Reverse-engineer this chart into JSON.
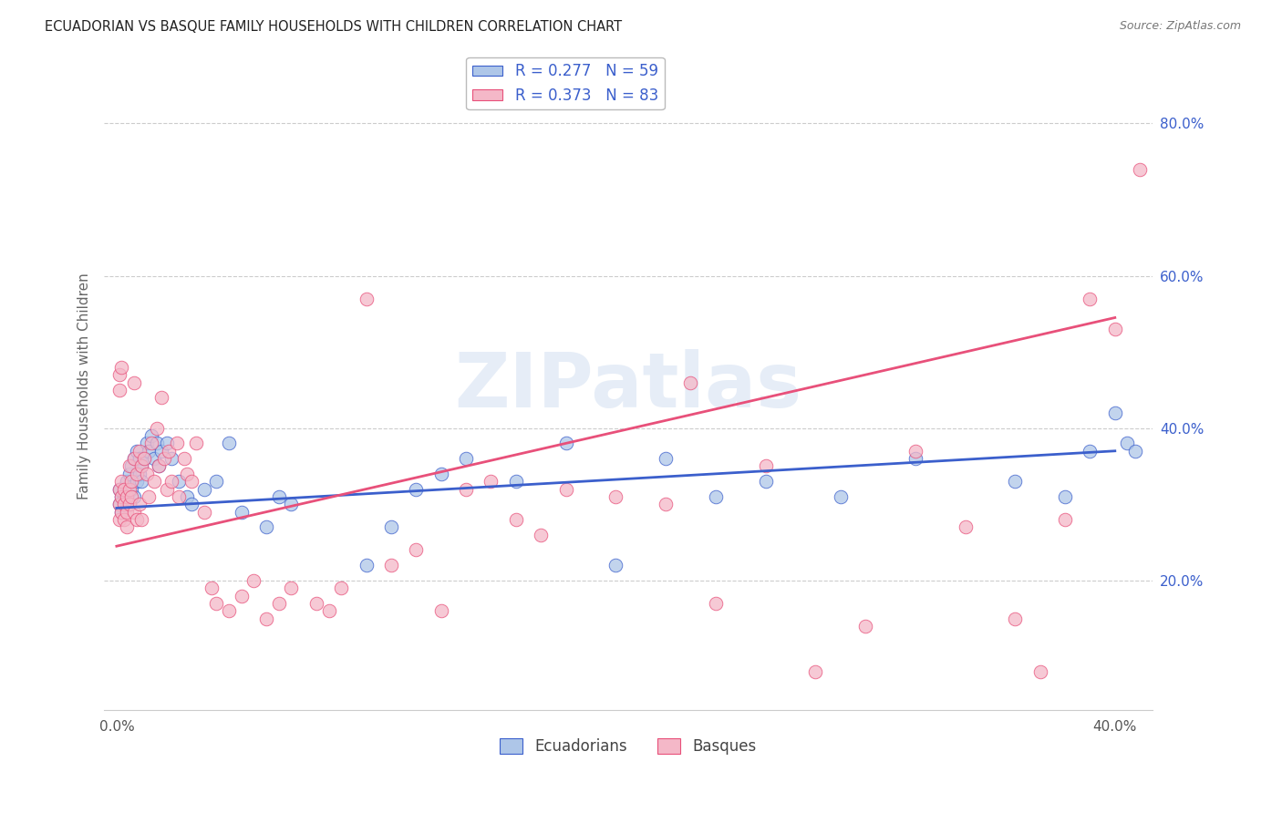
{
  "title": "ECUADORIAN VS BASQUE FAMILY HOUSEHOLDS WITH CHILDREN CORRELATION CHART",
  "source": "Source: ZipAtlas.com",
  "ylabel": "Family Households with Children",
  "watermark": "ZIPatlas",
  "x_ticks": [
    0.0,
    0.1,
    0.2,
    0.3,
    0.4
  ],
  "x_tick_labels": [
    "0.0%",
    "",
    "",
    "",
    "40.0%"
  ],
  "y_ticks_right": [
    0.2,
    0.4,
    0.6,
    0.8
  ],
  "y_tick_labels_right": [
    "20.0%",
    "40.0%",
    "60.0%",
    "80.0%"
  ],
  "x_lim": [
    -0.005,
    0.415
  ],
  "y_lim": [
    0.03,
    0.88
  ],
  "ecuadorians_color": "#aec6e8",
  "basques_color": "#f4b8c8",
  "trend_blue": "#3b5fcc",
  "trend_pink": "#e8507a",
  "legend_text_color": "#3b5fcc",
  "R_ecuador": 0.277,
  "N_ecuador": 59,
  "R_basque": 0.373,
  "N_basque": 83,
  "blue_trend_x0": 0.0,
  "blue_trend_y0": 0.295,
  "blue_trend_x1": 0.4,
  "blue_trend_y1": 0.37,
  "pink_trend_x0": 0.0,
  "pink_trend_y0": 0.245,
  "pink_trend_x1": 0.4,
  "pink_trend_y1": 0.545,
  "ecuadorians_x": [
    0.001,
    0.001,
    0.002,
    0.002,
    0.003,
    0.003,
    0.004,
    0.004,
    0.005,
    0.005,
    0.006,
    0.006,
    0.007,
    0.007,
    0.008,
    0.008,
    0.009,
    0.009,
    0.01,
    0.01,
    0.011,
    0.012,
    0.013,
    0.014,
    0.015,
    0.016,
    0.017,
    0.018,
    0.02,
    0.022,
    0.025,
    0.028,
    0.03,
    0.035,
    0.04,
    0.045,
    0.05,
    0.06,
    0.065,
    0.07,
    0.1,
    0.11,
    0.12,
    0.13,
    0.14,
    0.16,
    0.18,
    0.2,
    0.22,
    0.24,
    0.26,
    0.29,
    0.32,
    0.36,
    0.38,
    0.39,
    0.4,
    0.405,
    0.408
  ],
  "ecuadorians_y": [
    0.3,
    0.32,
    0.31,
    0.29,
    0.31,
    0.3,
    0.33,
    0.31,
    0.34,
    0.3,
    0.35,
    0.32,
    0.36,
    0.31,
    0.37,
    0.33,
    0.36,
    0.34,
    0.35,
    0.33,
    0.36,
    0.38,
    0.37,
    0.39,
    0.36,
    0.38,
    0.35,
    0.37,
    0.38,
    0.36,
    0.33,
    0.31,
    0.3,
    0.32,
    0.33,
    0.38,
    0.29,
    0.27,
    0.31,
    0.3,
    0.22,
    0.27,
    0.32,
    0.34,
    0.36,
    0.33,
    0.38,
    0.22,
    0.36,
    0.31,
    0.33,
    0.31,
    0.36,
    0.33,
    0.31,
    0.37,
    0.42,
    0.38,
    0.37
  ],
  "basques_x": [
    0.001,
    0.001,
    0.001,
    0.001,
    0.001,
    0.002,
    0.002,
    0.002,
    0.002,
    0.003,
    0.003,
    0.003,
    0.004,
    0.004,
    0.004,
    0.005,
    0.005,
    0.005,
    0.006,
    0.006,
    0.007,
    0.007,
    0.007,
    0.008,
    0.008,
    0.009,
    0.009,
    0.01,
    0.01,
    0.011,
    0.012,
    0.013,
    0.014,
    0.015,
    0.016,
    0.017,
    0.018,
    0.019,
    0.02,
    0.021,
    0.022,
    0.024,
    0.025,
    0.027,
    0.028,
    0.03,
    0.032,
    0.035,
    0.038,
    0.04,
    0.045,
    0.05,
    0.055,
    0.06,
    0.065,
    0.07,
    0.08,
    0.085,
    0.09,
    0.1,
    0.11,
    0.12,
    0.13,
    0.14,
    0.15,
    0.16,
    0.17,
    0.18,
    0.2,
    0.22,
    0.23,
    0.24,
    0.26,
    0.28,
    0.3,
    0.32,
    0.34,
    0.36,
    0.37,
    0.38,
    0.39,
    0.4,
    0.41
  ],
  "basques_y": [
    0.3,
    0.28,
    0.32,
    0.45,
    0.47,
    0.31,
    0.29,
    0.33,
    0.48,
    0.3,
    0.28,
    0.32,
    0.31,
    0.29,
    0.27,
    0.32,
    0.3,
    0.35,
    0.31,
    0.33,
    0.29,
    0.36,
    0.46,
    0.34,
    0.28,
    0.37,
    0.3,
    0.35,
    0.28,
    0.36,
    0.34,
    0.31,
    0.38,
    0.33,
    0.4,
    0.35,
    0.44,
    0.36,
    0.32,
    0.37,
    0.33,
    0.38,
    0.31,
    0.36,
    0.34,
    0.33,
    0.38,
    0.29,
    0.19,
    0.17,
    0.16,
    0.18,
    0.2,
    0.15,
    0.17,
    0.19,
    0.17,
    0.16,
    0.19,
    0.57,
    0.22,
    0.24,
    0.16,
    0.32,
    0.33,
    0.28,
    0.26,
    0.32,
    0.31,
    0.3,
    0.46,
    0.17,
    0.35,
    0.08,
    0.14,
    0.37,
    0.27,
    0.15,
    0.08,
    0.28,
    0.57,
    0.53,
    0.74
  ]
}
